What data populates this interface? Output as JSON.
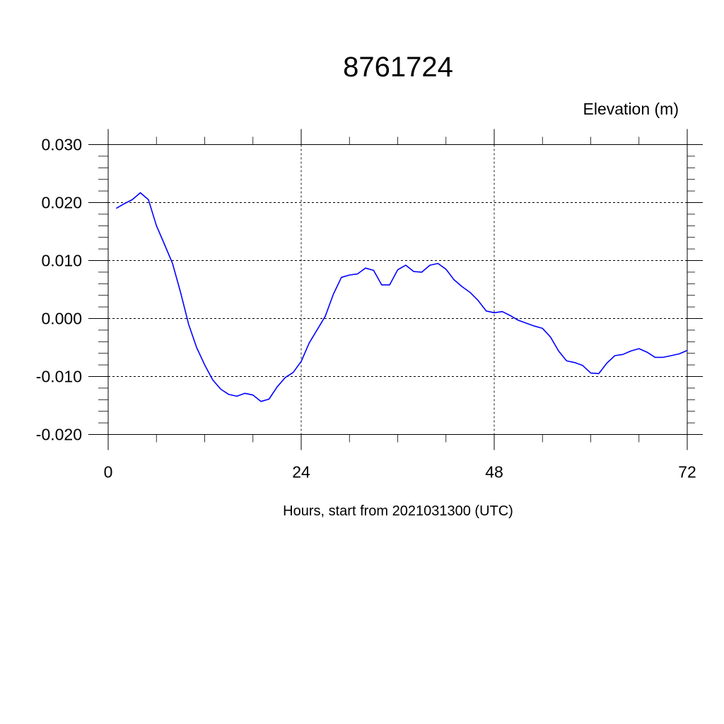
{
  "chart_data": {
    "type": "line",
    "title": "8761724",
    "ylabel": "Elevation (m)",
    "xlabel": "Hours, start from 2021031300 (UTC)",
    "xlim": [
      0,
      72
    ],
    "ylim": [
      -0.02,
      0.03
    ],
    "xticks": [
      0,
      24,
      48,
      72
    ],
    "xtick_labels": [
      "0",
      "24",
      "48",
      "72"
    ],
    "yticks": [
      -0.02,
      -0.01,
      0.0,
      0.01,
      0.02,
      0.03
    ],
    "ytick_labels": [
      "-0.020",
      "-0.010",
      "0.000",
      "0.010",
      "0.020",
      "0.030"
    ],
    "grid": true,
    "line_color": "#0000ff",
    "x": [
      1,
      2,
      3,
      4,
      5,
      6,
      7,
      8,
      9,
      10,
      11,
      12,
      13,
      14,
      15,
      16,
      17,
      18,
      19,
      20,
      21,
      22,
      23,
      24,
      25,
      26,
      27,
      28,
      29,
      30,
      31,
      32,
      33,
      34,
      35,
      36,
      37,
      38,
      39,
      40,
      41,
      42,
      43,
      44,
      45,
      46,
      47,
      48,
      49,
      50,
      51,
      52,
      53,
      54,
      55,
      56,
      57,
      58,
      59,
      60,
      61,
      62,
      63,
      64,
      65,
      66,
      67,
      68,
      69,
      70,
      71,
      72
    ],
    "y": [
      0.019,
      0.0198,
      0.0205,
      0.0217,
      0.0205,
      0.016,
      0.0128,
      0.0095,
      0.0045,
      -0.001,
      -0.005,
      -0.008,
      -0.0106,
      -0.0122,
      -0.0131,
      -0.0134,
      -0.0129,
      -0.0132,
      -0.0143,
      -0.0139,
      -0.0118,
      -0.0102,
      -0.0093,
      -0.0074,
      -0.0042,
      -0.0019,
      0.0004,
      0.0042,
      0.0071,
      0.0075,
      0.0077,
      0.0087,
      0.0083,
      0.0058,
      0.0058,
      0.0084,
      0.0092,
      0.0081,
      0.008,
      0.0092,
      0.0095,
      0.0085,
      0.0067,
      0.0055,
      0.0045,
      0.0031,
      0.0013,
      0.001,
      0.0012,
      0.0005,
      -0.0003,
      -0.0008,
      -0.0013,
      -0.0017,
      -0.0032,
      -0.0056,
      -0.0073,
      -0.0076,
      -0.0081,
      -0.0094,
      -0.0095,
      -0.0077,
      -0.0064,
      -0.0062,
      -0.0056,
      -0.0052,
      -0.0058,
      -0.0067,
      -0.0067,
      -0.0064,
      -0.0061,
      -0.0055
    ]
  }
}
